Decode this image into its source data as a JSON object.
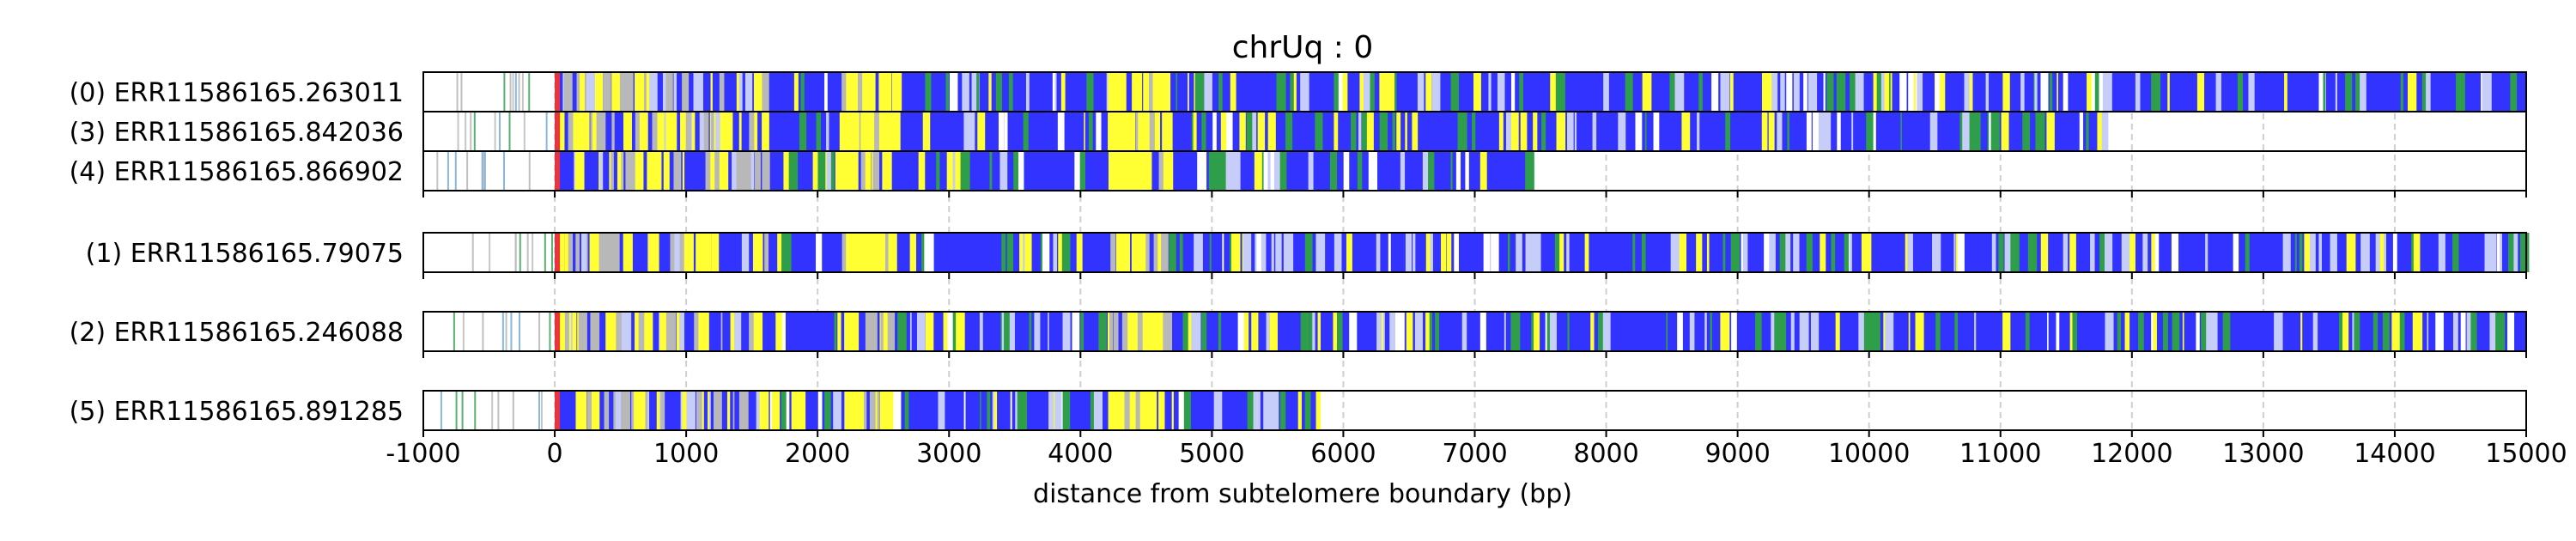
{
  "chart_data": {
    "type": "read-track",
    "title": "chrUq : 0",
    "xlabel": "distance from subtelomere boundary (bp)",
    "xlim": [
      -1000,
      15000
    ],
    "xticks": [
      -1000,
      0,
      1000,
      2000,
      3000,
      4000,
      5000,
      6000,
      7000,
      8000,
      9000,
      10000,
      11000,
      12000,
      13000,
      14000,
      15000
    ],
    "grid": "vertical dashed",
    "colors": {
      "base_track": "#3333ff",
      "boundary_marker": "#e8343a",
      "yellow_motif": "#ffff33",
      "green_motif": "#2e9e4a",
      "gray_motif": "#b8b8b8",
      "light_motif": "#c6cdf9",
      "white_gap": "#ffffff"
    },
    "groups": [
      {
        "reads": [
          {
            "label": "(0) ERR11586165.263011",
            "end": 15000
          },
          {
            "label": "(3) ERR11586165.842036",
            "end": 11800
          },
          {
            "label": "(4) ERR11586165.866902",
            "end": 7400
          }
        ]
      },
      {
        "reads": [
          {
            "label": "(1) ERR11586165.79075",
            "end": 15000
          }
        ]
      },
      {
        "reads": [
          {
            "label": "(2) ERR11586165.246088",
            "end": 15000
          }
        ]
      },
      {
        "reads": [
          {
            "label": "(5) ERR11586165.891285",
            "end": 5800
          }
        ]
      }
    ]
  }
}
